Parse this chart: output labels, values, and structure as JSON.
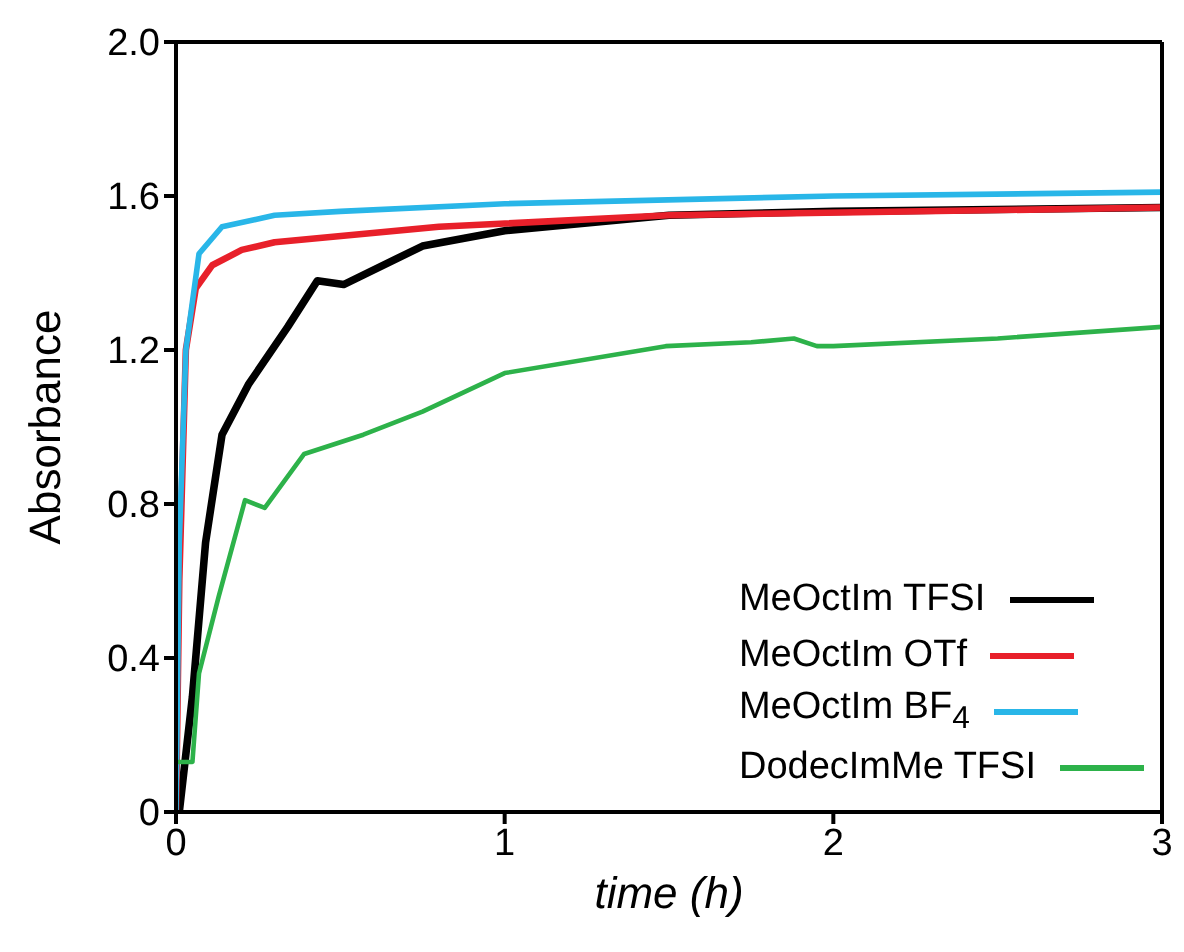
{
  "chart_data": {
    "type": "line",
    "xlabel": "time (h)",
    "ylabel": "Absorbance",
    "xlim": [
      0,
      3
    ],
    "xticks": [
      0,
      1,
      2,
      3
    ],
    "ylim": [
      0,
      2
    ],
    "yticks": [
      0,
      0.4,
      0.8,
      1.2,
      1.6,
      {
        "value": 2,
        "label": "2.0"
      }
    ],
    "grid": false,
    "legend": "bottom right",
    "marker": "none",
    "line_style": "solid",
    "series": [
      {
        "name": "MeOctIm TFSI",
        "color": "#000000",
        "x": [
          0.01,
          0.03,
          0.05,
          0.09,
          0.14,
          0.22,
          0.34,
          0.43,
          0.51,
          0.75,
          1.0,
          1.5,
          2.0,
          3.0
        ],
        "values": [
          0,
          0.15,
          0.3,
          0.7,
          0.98,
          1.11,
          1.26,
          1.38,
          1.37,
          1.47,
          1.51,
          1.55,
          1.56,
          1.57
        ]
      },
      {
        "name": "MeOctIm OTf",
        "color": "#e8202a",
        "x": [
          0,
          0.01,
          0.03,
          0.06,
          0.11,
          0.2,
          0.3,
          0.8,
          1.5,
          3.0
        ],
        "values": [
          0,
          0.6,
          1.2,
          1.36,
          1.42,
          1.46,
          1.48,
          1.52,
          1.55,
          1.57
        ]
      },
      {
        "name": "MeOctIm BF$_{4}$",
        "color": "#29b6e8",
        "x": [
          0,
          0.01,
          0.03,
          0.07,
          0.14,
          0.3,
          0.5,
          1.0,
          2.0,
          3.0
        ],
        "values": [
          0,
          0.7,
          1.2,
          1.45,
          1.52,
          1.55,
          1.56,
          1.58,
          1.6,
          1.61
        ]
      },
      {
        "name": "DodecImMe TFSI",
        "color": "#2db24a",
        "x": [
          0,
          0.05,
          0.07,
          0.13,
          0.21,
          0.27,
          0.39,
          0.57,
          0.75,
          1.0,
          1.49,
          1.75,
          1.88,
          1.95,
          2.0,
          2.5,
          3.0
        ],
        "values": [
          0.13,
          0.13,
          0.36,
          0.56,
          0.81,
          0.79,
          0.93,
          0.98,
          1.04,
          1.14,
          1.21,
          1.22,
          1.23,
          1.21,
          1.21,
          1.23,
          1.26
        ]
      }
    ]
  }
}
